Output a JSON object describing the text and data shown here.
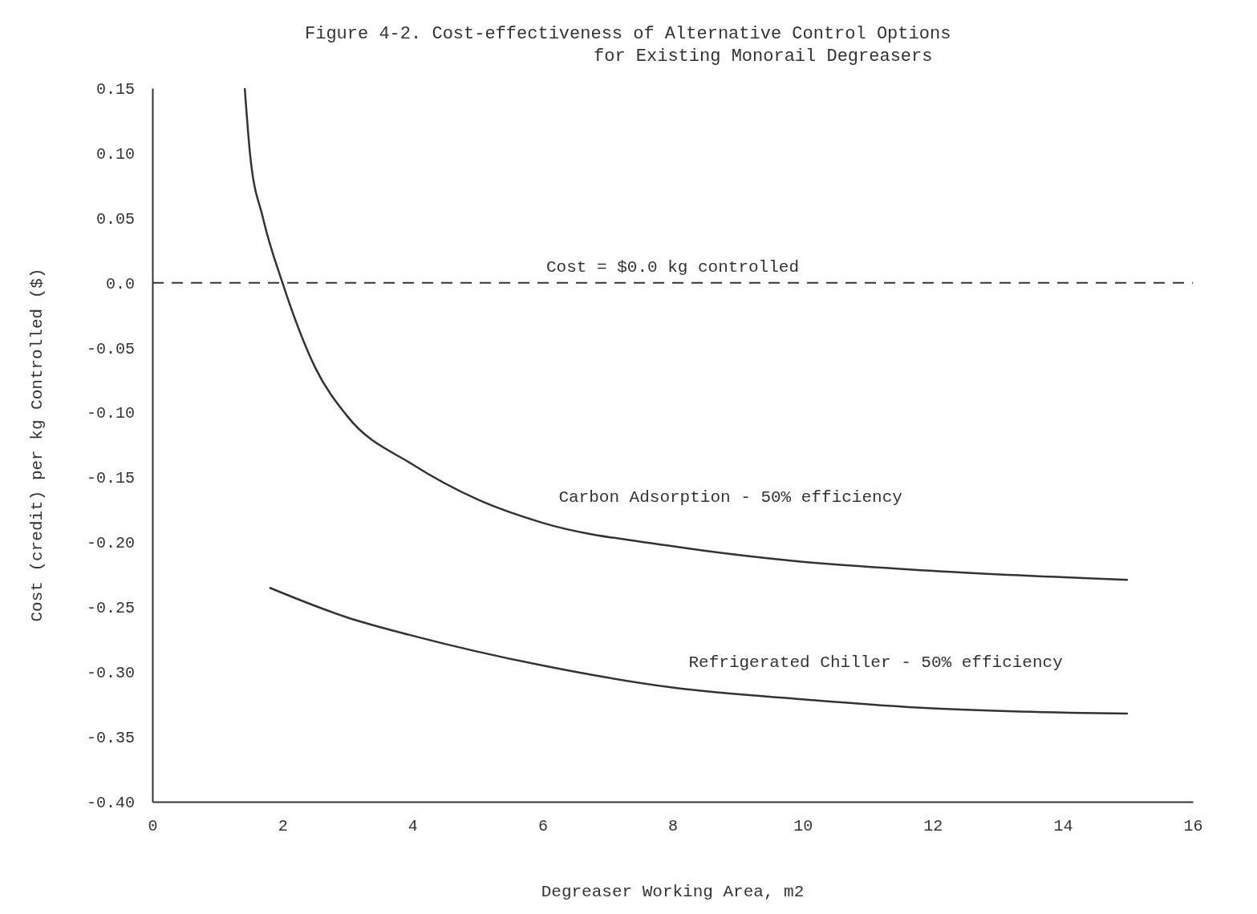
{
  "chart_data": {
    "type": "line",
    "title": "Figure 4-2.  Cost-effectiveness of Alternative Control Options\nfor Existing Monorail Degreasers",
    "xlabel": "Degreaser Working Area, m2",
    "ylabel": "Cost (credit) per kg Controlled ($)",
    "xlim": [
      0,
      16
    ],
    "ylim": [
      -0.4,
      0.15
    ],
    "xticks": [
      0,
      2,
      4,
      6,
      8,
      10,
      12,
      14,
      16
    ],
    "yticks": [
      {
        "value": 0.15,
        "label": "0.15"
      },
      {
        "value": 0.1,
        "label": "0.10"
      },
      {
        "value": 0.05,
        "label": "0.05"
      },
      {
        "value": 0,
        "label": "0.0"
      },
      {
        "value": -0.05,
        "label": "-0.05"
      },
      {
        "value": -0.1,
        "label": "-0.10"
      },
      {
        "value": -0.15,
        "label": "-0.15"
      },
      {
        "value": -0.2,
        "label": "-0.20"
      },
      {
        "value": -0.25,
        "label": "-0.25"
      },
      {
        "value": -0.3,
        "label": "-0.30"
      },
      {
        "value": -0.35,
        "label": "-0.35"
      },
      {
        "value": -0.4,
        "label": "-0.40"
      }
    ],
    "grid": false,
    "marker": "none",
    "line_style": "solid",
    "series": [
      {
        "name": "Carbon Adsorption - 50% efficiency",
        "color": "#333333",
        "x": [
          1.42,
          1.5,
          1.7,
          2,
          2.5,
          3,
          4,
          5,
          6,
          8,
          10,
          12,
          15
        ],
        "values": [
          0.15,
          0.1,
          0.05,
          0,
          -0.065,
          -0.103,
          -0.14,
          -0.167,
          -0.185,
          -0.203,
          -0.215,
          -0.222,
          -0.229
        ]
      },
      {
        "name": "Refrigerated Chiller - 50% efficiency",
        "color": "#333333",
        "x": [
          1.8,
          3,
          4,
          6,
          8,
          10,
          12,
          15
        ],
        "values": [
          -0.235,
          -0.258,
          -0.272,
          -0.295,
          -0.312,
          -0.321,
          -0.328,
          -0.332
        ]
      }
    ],
    "ref_lines": [
      {
        "axis": "y",
        "value": 0,
        "label": "Cost = $0.0 kg controlled",
        "line_style": "dashed",
        "color": "#333333"
      }
    ]
  }
}
